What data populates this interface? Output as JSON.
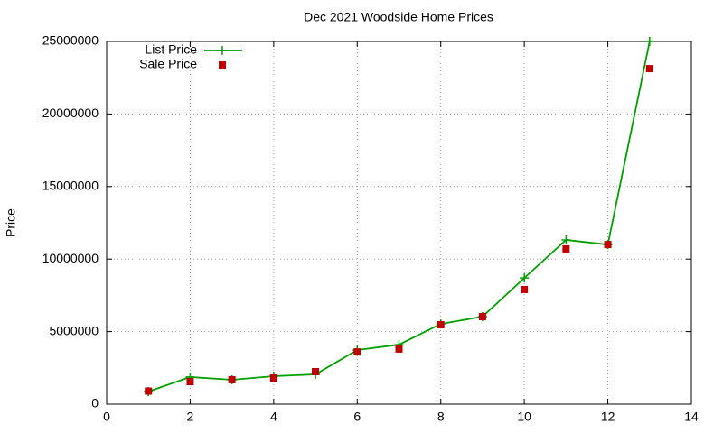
{
  "chart_data": {
    "type": "line",
    "title": "Dec 2021 Woodside Home Prices",
    "y_label": "Price",
    "x": [
      1,
      2,
      3,
      4,
      5,
      6,
      7,
      8,
      9,
      10,
      11,
      12,
      13
    ],
    "series": [
      {
        "name": "List Price",
        "color": "#00a000",
        "mode": "lines+markers",
        "marker": "plus",
        "values": [
          870000,
          1870000,
          1680000,
          1930000,
          2050000,
          3730000,
          4100000,
          5530000,
          6030000,
          8700000,
          11320000,
          11000000,
          25000000
        ]
      },
      {
        "name": "Sale Price",
        "color": "#c00000",
        "mode": "markers",
        "marker": "square",
        "values": [
          900000,
          1550000,
          1680000,
          1800000,
          2240000,
          3600000,
          3800000,
          5470000,
          6030000,
          7900000,
          10700000,
          11000000,
          23130000
        ]
      }
    ],
    "xlim": [
      0,
      14
    ],
    "xticks": [
      0,
      2,
      4,
      6,
      8,
      10,
      12,
      14
    ],
    "ylim": [
      0,
      25000000
    ],
    "yticks": [
      0,
      5000000,
      10000000,
      15000000,
      20000000,
      25000000
    ],
    "grid": true,
    "legend": "top-left"
  }
}
